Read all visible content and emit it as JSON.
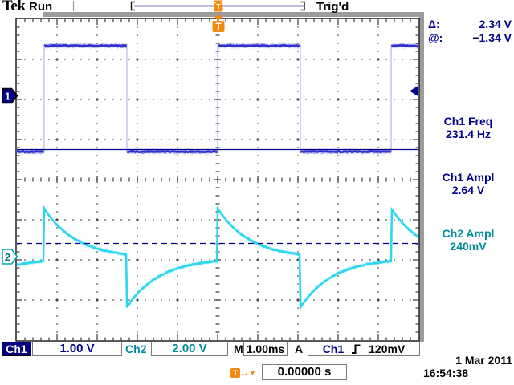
{
  "top_bar": {
    "logo": "Tek",
    "acq_status": "Run",
    "trigger_status": "Trig'd"
  },
  "cursor_readout": {
    "delta_label": "Δ:",
    "delta_value": "2.34 V",
    "at_label": "@:",
    "at_value": "−1.34 V"
  },
  "measurements": [
    {
      "label": "Ch1 Freq",
      "value": "231.4 Hz",
      "channel": "ch1"
    },
    {
      "label": "Ch1 Ampl",
      "value": "2.64 V",
      "channel": "ch1"
    },
    {
      "label": "Ch2 Ampl",
      "value": "240mV",
      "channel": "ch2"
    }
  ],
  "bottom_bar": {
    "ch1_label": "Ch1",
    "ch1_scale": "1.00 V",
    "ch2_label": "Ch2",
    "ch2_scale": "2.00 V",
    "timebase_label": "M",
    "timebase_value": "1.00ms",
    "trigger_bus_label": "A",
    "trigger_source": "Ch1",
    "trigger_level": "120mV"
  },
  "trigger_readout": {
    "marker_letter": "T",
    "arrow_right": "→",
    "arrow_down": "▼",
    "position_value": "0.00000 s"
  },
  "datetime": {
    "date": "1 Mar 2011",
    "time": "16:54:38"
  },
  "channel_markers": {
    "ch1": "1",
    "ch2": "2"
  },
  "colors": {
    "ch1_navy": "#00008b",
    "ch2_teal": "#008b9b",
    "trace_blue": "#2a2ace",
    "trace_blue_halo": "#6a6ae0",
    "trace_blue_edge": "#a8a8ee",
    "trace_cyan": "#2bd7ef",
    "trace_cyan_halo": "#8ceefc",
    "orange": "#f5890f",
    "bezel_gray": "#9c9c9c",
    "grid_dot": "#3a3a3a",
    "cursor_navy": "#00008b"
  },
  "chart_data": {
    "type": "line",
    "title": "Oscilloscope traces: Ch1 square wave, Ch2 RC-differentiated response",
    "x_axis": {
      "units": "ms",
      "per_div": 1.0,
      "divisions": 10,
      "window_ms": [
        -5,
        5
      ],
      "trigger_t_ms": 0
    },
    "y_axis": {
      "divisions": 8
    },
    "series": [
      {
        "name": "Ch1",
        "waveform": "square",
        "volts_per_div": 1.0,
        "high_v": 1.25,
        "low_v": -1.39,
        "period_ms": 4.3216,
        "high_duration_ms": 2.06,
        "rising_edge_at_ms": 0,
        "ground_div_from_top": 1.91,
        "frequency_hz": 231.4,
        "amplitude_v": 2.64
      },
      {
        "name": "Ch2",
        "waveform": "rc_differentiated",
        "volts_per_div": 2.0,
        "baseline_v": -0.08,
        "edge_step_v": 2.64,
        "tau_ms": 0.8,
        "ground_div_from_top": 5.92,
        "amplitude_meas": "240mV"
      }
    ],
    "cursors": {
      "type": "voltage-horizontal",
      "source": "Ch1",
      "cursor1_v": -1.34,
      "cursor1_style": "solid",
      "cursor2_v": -3.68,
      "cursor2_style": "dashed",
      "delta_v": 2.34
    },
    "trigger": {
      "source": "Ch1",
      "slope": "rising",
      "level": "120mV",
      "position_s": "0.00000 s"
    }
  }
}
